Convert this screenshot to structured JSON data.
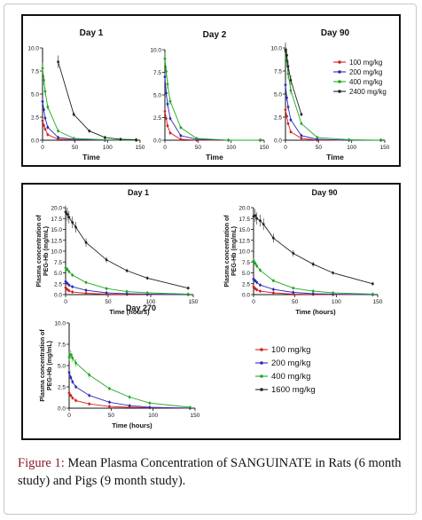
{
  "figure": {
    "caption_label": "Figure 1:",
    "caption_text": "Mean Plasma Concentration of SANGUINATE in Rats (6 month study) and Pigs (9 month study)."
  },
  "legends": {
    "rats": [
      "100 mg/kg",
      "200 mg/kg",
      "400 mg/kg",
      "2400 mg/kg"
    ],
    "pigs": [
      "100 mg/kg",
      "200 mg/kg",
      "400 mg/kg",
      "1600 mg/kg"
    ]
  },
  "colors": {
    "s100": "#d42020",
    "s200": "#2a2ab8",
    "s400": "#1fa81f",
    "shigh": "#222222"
  },
  "chart_data": [
    {
      "type": "line",
      "title": "Day 1",
      "xlabel": "Time",
      "ylabel": "",
      "xlim": [
        0,
        150
      ],
      "ylim": [
        0,
        10
      ],
      "xticks": [
        0,
        50,
        100,
        150
      ],
      "yticks": [
        0.0,
        2.5,
        5.0,
        7.5,
        10.0
      ],
      "series": [
        {
          "name": "100 mg/kg",
          "x": [
            0,
            2,
            4,
            8,
            24,
            48,
            96,
            144
          ],
          "y": [
            2.1,
            1.6,
            1.2,
            0.6,
            0.1,
            0.05,
            0.0,
            0.0
          ]
        },
        {
          "name": "200 mg/kg",
          "x": [
            0,
            2,
            4,
            8,
            24,
            48,
            96,
            144
          ],
          "y": [
            4.2,
            3.3,
            2.4,
            1.4,
            0.3,
            0.1,
            0.0,
            0.0
          ]
        },
        {
          "name": "400 mg/kg",
          "x": [
            0,
            2,
            4,
            8,
            24,
            48,
            96,
            144
          ],
          "y": [
            7.8,
            6.5,
            5.3,
            3.6,
            1.0,
            0.2,
            0.05,
            0.0
          ]
        },
        {
          "name": "2400 mg/kg",
          "x": [
            24,
            48,
            72,
            96,
            120,
            144
          ],
          "y": [
            8.5,
            2.8,
            1.0,
            0.3,
            0.1,
            0.05
          ]
        }
      ]
    },
    {
      "type": "line",
      "title": "Day 2",
      "xlabel": "Time",
      "ylabel": "",
      "xlim": [
        0,
        150
      ],
      "ylim": [
        0,
        10
      ],
      "xticks": [
        0,
        50,
        100,
        150
      ],
      "yticks": [
        0.0,
        2.5,
        5.0,
        7.5,
        10.0
      ],
      "series": [
        {
          "name": "100 mg/kg",
          "x": [
            0,
            2,
            4,
            8,
            24,
            48,
            96,
            144
          ],
          "y": [
            3.2,
            2.4,
            1.6,
            0.8,
            0.1,
            0.0,
            0.0,
            0.0
          ]
        },
        {
          "name": "200 mg/kg",
          "x": [
            0,
            2,
            4,
            8,
            24,
            48,
            96,
            144
          ],
          "y": [
            7.0,
            5.2,
            4.0,
            2.4,
            0.5,
            0.1,
            0.0,
            0.0
          ]
        },
        {
          "name": "400 mg/kg",
          "x": [
            0,
            2,
            4,
            8,
            24,
            48,
            96,
            144
          ],
          "y": [
            9.0,
            7.6,
            6.2,
            4.3,
            1.4,
            0.2,
            0.0,
            0.0
          ]
        }
      ]
    },
    {
      "type": "line",
      "title": "Day 90",
      "xlabel": "Time",
      "ylabel": "",
      "xlim": [
        0,
        150
      ],
      "ylim": [
        0,
        10
      ],
      "xticks": [
        0,
        50,
        100,
        150
      ],
      "yticks": [
        0.0,
        2.5,
        5.0,
        7.5,
        10.0
      ],
      "series": [
        {
          "name": "100 mg/kg",
          "x": [
            0,
            2,
            4,
            8,
            24,
            48,
            96,
            144
          ],
          "y": [
            3.3,
            2.6,
            1.8,
            0.9,
            0.2,
            0.0,
            0.0,
            0.0
          ]
        },
        {
          "name": "200 mg/kg",
          "x": [
            0,
            2,
            4,
            8,
            24,
            48,
            96,
            144
          ],
          "y": [
            6.0,
            4.6,
            3.6,
            2.2,
            0.5,
            0.1,
            0.0,
            0.0
          ]
        },
        {
          "name": "400 mg/kg",
          "x": [
            0,
            2,
            4,
            8,
            24,
            48,
            96,
            144
          ],
          "y": [
            9.6,
            8.6,
            7.2,
            5.4,
            1.8,
            0.3,
            0.05,
            0.0
          ]
        },
        {
          "name": "2400 mg/kg",
          "x": [
            0,
            2,
            4,
            8,
            24
          ],
          "y": [
            9.8,
            9.2,
            8.0,
            6.5,
            2.8
          ]
        }
      ]
    },
    {
      "type": "line",
      "title": "Day 1",
      "xlabel": "Time (hours)",
      "ylabel": "Plasma concentration of PEG-Hb (mg/mL)",
      "xlim": [
        0,
        150
      ],
      "ylim": [
        0,
        20
      ],
      "xticks": [
        0,
        50,
        100,
        150
      ],
      "yticks": [
        0.0,
        2.5,
        5.0,
        7.5,
        10.0,
        12.5,
        15.0,
        17.5,
        20.0
      ],
      "series": [
        {
          "name": "100 mg/kg",
          "x": [
            0,
            2,
            4,
            8,
            24,
            48,
            72,
            96,
            144
          ],
          "y": [
            1.6,
            1.2,
            0.9,
            0.6,
            0.3,
            0.1,
            0.05,
            0.0,
            0.0
          ]
        },
        {
          "name": "200 mg/kg",
          "x": [
            0,
            2,
            4,
            8,
            24,
            48,
            72,
            96,
            144
          ],
          "y": [
            3.0,
            2.6,
            2.2,
            1.8,
            1.0,
            0.4,
            0.2,
            0.1,
            0.0
          ]
        },
        {
          "name": "400 mg/kg",
          "x": [
            0,
            2,
            4,
            8,
            24,
            48,
            72,
            96,
            144
          ],
          "y": [
            6.2,
            5.8,
            5.3,
            4.5,
            2.8,
            1.4,
            0.7,
            0.4,
            0.1
          ]
        },
        {
          "name": "1600 mg/kg",
          "x": [
            0,
            2,
            4,
            8,
            12,
            24,
            48,
            72,
            96,
            144
          ],
          "y": [
            19.0,
            18.5,
            17.8,
            16.6,
            15.5,
            12.0,
            8.0,
            5.5,
            3.8,
            1.5
          ]
        }
      ]
    },
    {
      "type": "line",
      "title": "Day 90",
      "xlabel": "Time (hours)",
      "ylabel": "Plasma concentration of PEG-Hb (mg/mL)",
      "xlim": [
        0,
        150
      ],
      "ylim": [
        0,
        20
      ],
      "xticks": [
        0,
        50,
        100,
        150
      ],
      "yticks": [
        0.0,
        2.5,
        5.0,
        7.5,
        10.0,
        12.5,
        15.0,
        17.5,
        20.0
      ],
      "series": [
        {
          "name": "100 mg/kg",
          "x": [
            0,
            2,
            4,
            8,
            24,
            48,
            72,
            96,
            144
          ],
          "y": [
            1.8,
            1.4,
            1.1,
            0.8,
            0.4,
            0.1,
            0.05,
            0.0,
            0.0
          ]
        },
        {
          "name": "200 mg/kg",
          "x": [
            0,
            2,
            4,
            8,
            24,
            48,
            72,
            96,
            144
          ],
          "y": [
            3.6,
            3.2,
            2.8,
            2.2,
            1.2,
            0.5,
            0.2,
            0.1,
            0.0
          ]
        },
        {
          "name": "400 mg/kg",
          "x": [
            0,
            2,
            4,
            8,
            24,
            48,
            72,
            96,
            144
          ],
          "y": [
            7.8,
            7.2,
            6.6,
            5.6,
            3.2,
            1.5,
            0.8,
            0.4,
            0.1
          ]
        },
        {
          "name": "1600 mg/kg",
          "x": [
            0,
            2,
            4,
            8,
            12,
            24,
            48,
            72,
            96,
            144
          ],
          "y": [
            18.0,
            18.2,
            17.5,
            17.0,
            16.2,
            13.0,
            9.5,
            7.0,
            5.0,
            2.5
          ]
        }
      ]
    },
    {
      "type": "line",
      "title": "Day 270",
      "xlabel": "Time (hours)",
      "ylabel": "Plasma concentration of PEG-Hb (mg/mL)",
      "xlim": [
        0,
        150
      ],
      "ylim": [
        0,
        10
      ],
      "xticks": [
        0,
        50,
        100,
        150
      ],
      "yticks": [
        0.0,
        2.5,
        5.0,
        7.5,
        10.0
      ],
      "series": [
        {
          "name": "100 mg/kg",
          "x": [
            0,
            2,
            4,
            8,
            24,
            48,
            72,
            96,
            144
          ],
          "y": [
            1.8,
            1.5,
            1.2,
            0.9,
            0.5,
            0.2,
            0.1,
            0.05,
            0.0
          ]
        },
        {
          "name": "200 mg/kg",
          "x": [
            0,
            2,
            4,
            8,
            24,
            48,
            72,
            96,
            144
          ],
          "y": [
            4.2,
            3.6,
            3.1,
            2.5,
            1.5,
            0.7,
            0.3,
            0.1,
            0.0
          ]
        },
        {
          "name": "400 mg/kg",
          "x": [
            0,
            2,
            4,
            8,
            24,
            48,
            72,
            96,
            144
          ],
          "y": [
            6.0,
            6.3,
            5.9,
            5.3,
            3.9,
            2.3,
            1.3,
            0.6,
            0.1
          ]
        }
      ]
    }
  ]
}
